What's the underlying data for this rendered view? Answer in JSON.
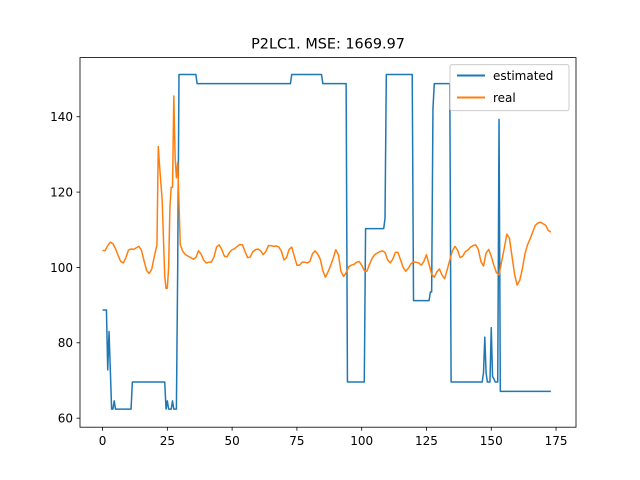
{
  "chart_data": {
    "type": "line",
    "title": "P2LC1. MSE: 1669.97",
    "xlabel": "",
    "ylabel": "",
    "xlim": [
      -8.7,
      182.7
    ],
    "ylim": [
      57.6,
      155.7
    ],
    "xticks": [
      0,
      25,
      50,
      75,
      100,
      125,
      150,
      175
    ],
    "yticks": [
      60,
      80,
      100,
      120,
      140
    ],
    "grid": false,
    "legend_position": "top-right",
    "series": [
      {
        "name": "estimated",
        "color": "#1f77b4",
        "points": [
          [
            0,
            88.7
          ],
          [
            1.5,
            88.7
          ],
          [
            2,
            72.8
          ],
          [
            2.5,
            83.0
          ],
          [
            3,
            72.8
          ],
          [
            3.5,
            62.4
          ],
          [
            4,
            62.4
          ],
          [
            4.5,
            64.6
          ],
          [
            5,
            62.4
          ],
          [
            6,
            62.4
          ],
          [
            11,
            62.4
          ],
          [
            11.5,
            69.6
          ],
          [
            24,
            69.6
          ],
          [
            24.5,
            62.4
          ],
          [
            25,
            64.6
          ],
          [
            25.5,
            62.4
          ],
          [
            26.5,
            62.4
          ],
          [
            27,
            64.6
          ],
          [
            27.5,
            62.4
          ],
          [
            28.5,
            62.4
          ],
          [
            29,
            100.0
          ],
          [
            29.5,
            151.2
          ],
          [
            36,
            151.2
          ],
          [
            36.5,
            148.8
          ],
          [
            72.5,
            148.8
          ],
          [
            73,
            151.2
          ],
          [
            84.5,
            151.2
          ],
          [
            85,
            148.8
          ],
          [
            94,
            148.8
          ],
          [
            94.5,
            69.6
          ],
          [
            101,
            69.6
          ],
          [
            101.5,
            110.3
          ],
          [
            108.5,
            110.3
          ],
          [
            109,
            113.0
          ],
          [
            109.5,
            151.2
          ],
          [
            119.5,
            151.2
          ],
          [
            120,
            91.2
          ],
          [
            126,
            91.2
          ],
          [
            126.5,
            93.5
          ],
          [
            127,
            93.5
          ],
          [
            127.5,
            142.0
          ],
          [
            128,
            148.8
          ],
          [
            134,
            148.8
          ],
          [
            134.5,
            69.6
          ],
          [
            146.5,
            69.6
          ],
          [
            147,
            72.0
          ],
          [
            147.5,
            81.5
          ],
          [
            148,
            72.0
          ],
          [
            148.5,
            69.6
          ],
          [
            149.5,
            69.6
          ],
          [
            150,
            84.0
          ],
          [
            150.5,
            71.0
          ],
          [
            151,
            70.5
          ],
          [
            151.5,
            69.6
          ],
          [
            152.5,
            69.6
          ],
          [
            153,
            139.3
          ],
          [
            153.5,
            67.1
          ],
          [
            173,
            67.1
          ]
        ]
      },
      {
        "name": "real",
        "color": "#ff7f0e",
        "points": [
          [
            0,
            104.5
          ],
          [
            1,
            104.5
          ],
          [
            2,
            105.8
          ],
          [
            3,
            106.7
          ],
          [
            4,
            106.3
          ],
          [
            5,
            105.0
          ],
          [
            6,
            103.2
          ],
          [
            7,
            101.6
          ],
          [
            8,
            101.2
          ],
          [
            9,
            102.6
          ],
          [
            10,
            104.6
          ],
          [
            11,
            104.9
          ],
          [
            12,
            104.8
          ],
          [
            13,
            105.2
          ],
          [
            14,
            105.6
          ],
          [
            15,
            104.6
          ],
          [
            16,
            101.8
          ],
          [
            17,
            99.2
          ],
          [
            18,
            98.4
          ],
          [
            19,
            99.6
          ],
          [
            20,
            103.0
          ],
          [
            21,
            106.0
          ],
          [
            21.5,
            132.1
          ],
          [
            22,
            127.0
          ],
          [
            23,
            118.0
          ],
          [
            24,
            97.6
          ],
          [
            24.5,
            94.4
          ],
          [
            25,
            94.5
          ],
          [
            25.5,
            100.0
          ],
          [
            26,
            116.0
          ],
          [
            26.5,
            121.3
          ],
          [
            27,
            121.3
          ],
          [
            27.5,
            145.5
          ],
          [
            28,
            129.4
          ],
          [
            28.5,
            123.8
          ],
          [
            29,
            127.9
          ],
          [
            29.5,
            117.0
          ],
          [
            30,
            106.0
          ],
          [
            31,
            104.2
          ],
          [
            32,
            103.4
          ],
          [
            33,
            103.0
          ],
          [
            34,
            102.6
          ],
          [
            35,
            102.2
          ],
          [
            36,
            102.6
          ],
          [
            37,
            104.4
          ],
          [
            38,
            103.6
          ],
          [
            39,
            102.0
          ],
          [
            40,
            101.2
          ],
          [
            41,
            101.4
          ],
          [
            42,
            101.4
          ],
          [
            43,
            102.8
          ],
          [
            44,
            105.4
          ],
          [
            45,
            106.0
          ],
          [
            46,
            104.8
          ],
          [
            47,
            103.0
          ],
          [
            48,
            102.8
          ],
          [
            49,
            104.0
          ],
          [
            50,
            104.7
          ],
          [
            51,
            105.0
          ],
          [
            52,
            105.6
          ],
          [
            53,
            106.1
          ],
          [
            54,
            106.0
          ],
          [
            55,
            104.2
          ],
          [
            56,
            102.6
          ],
          [
            57,
            102.8
          ],
          [
            58,
            104.2
          ],
          [
            59,
            104.7
          ],
          [
            60,
            104.9
          ],
          [
            61,
            104.4
          ],
          [
            62,
            103.4
          ],
          [
            63,
            104.2
          ],
          [
            64,
            105.8
          ],
          [
            65,
            105.8
          ],
          [
            66,
            105.6
          ],
          [
            67,
            105.7
          ],
          [
            68,
            105.4
          ],
          [
            69,
            104.4
          ],
          [
            70,
            102.0
          ],
          [
            71,
            102.6
          ],
          [
            72,
            104.8
          ],
          [
            73,
            105.4
          ],
          [
            74,
            103.0
          ],
          [
            75,
            100.6
          ],
          [
            76,
            100.6
          ],
          [
            77,
            101.4
          ],
          [
            78,
            101.4
          ],
          [
            79,
            101.2
          ],
          [
            80,
            101.6
          ],
          [
            81,
            103.6
          ],
          [
            82,
            104.4
          ],
          [
            83,
            103.6
          ],
          [
            84,
            102.2
          ],
          [
            85,
            99.2
          ],
          [
            86,
            97.4
          ],
          [
            87,
            98.8
          ],
          [
            88,
            100.5
          ],
          [
            89,
            102.4
          ],
          [
            90,
            104.7
          ],
          [
            91,
            103.4
          ],
          [
            92,
            99.0
          ],
          [
            93,
            97.6
          ],
          [
            94,
            98.6
          ],
          [
            95,
            100.2
          ],
          [
            96,
            100.6
          ],
          [
            97,
            100.8
          ],
          [
            98,
            101.4
          ],
          [
            99,
            101.6
          ],
          [
            100,
            100.6
          ],
          [
            101,
            99.2
          ],
          [
            102,
            99.0
          ],
          [
            103,
            100.8
          ],
          [
            104,
            102.4
          ],
          [
            105,
            103.4
          ],
          [
            106,
            103.8
          ],
          [
            107,
            104.2
          ],
          [
            108,
            104.4
          ],
          [
            109,
            104.0
          ],
          [
            110,
            102.0
          ],
          [
            111,
            101.2
          ],
          [
            112,
            102.2
          ],
          [
            113,
            104.0
          ],
          [
            114,
            104.0
          ],
          [
            115,
            102.0
          ],
          [
            116,
            100.0
          ],
          [
            117,
            99.0
          ],
          [
            118,
            99.8
          ],
          [
            119,
            101.0
          ],
          [
            120,
            101.4
          ],
          [
            121,
            101.4
          ],
          [
            122,
            101.2
          ],
          [
            123,
            100.6
          ],
          [
            124,
            101.6
          ],
          [
            125,
            103.4
          ],
          [
            126,
            100.8
          ],
          [
            127,
            98.2
          ],
          [
            128,
            97.4
          ],
          [
            129,
            98.8
          ],
          [
            130,
            99.6
          ],
          [
            131,
            98.0
          ],
          [
            132,
            97.0
          ],
          [
            133,
            99.4
          ],
          [
            134,
            102.0
          ],
          [
            135,
            104.4
          ],
          [
            136,
            105.6
          ],
          [
            137,
            104.6
          ],
          [
            138,
            102.6
          ],
          [
            139,
            103.0
          ],
          [
            140,
            104.2
          ],
          [
            141,
            104.6
          ],
          [
            142,
            105.4
          ],
          [
            143,
            105.8
          ],
          [
            144,
            106.0
          ],
          [
            145,
            104.8
          ],
          [
            146,
            101.6
          ],
          [
            147,
            100.4
          ],
          [
            148,
            103.8
          ],
          [
            149,
            104.8
          ],
          [
            150,
            103.0
          ],
          [
            151,
            100.6
          ],
          [
            152,
            98.6
          ],
          [
            153,
            98.0
          ],
          [
            154,
            101.6
          ],
          [
            155,
            105.0
          ],
          [
            156,
            108.8
          ],
          [
            157,
            107.8
          ],
          [
            158,
            103.0
          ],
          [
            159,
            98.2
          ],
          [
            160,
            95.3
          ],
          [
            161,
            96.6
          ],
          [
            162,
            99.6
          ],
          [
            163,
            103.6
          ],
          [
            164,
            106.0
          ],
          [
            165,
            107.6
          ],
          [
            166,
            109.4
          ],
          [
            167,
            111.2
          ],
          [
            168,
            111.8
          ],
          [
            169,
            112.0
          ],
          [
            170,
            111.6
          ],
          [
            171,
            111.2
          ],
          [
            172,
            109.8
          ],
          [
            173,
            109.4
          ]
        ]
      }
    ]
  }
}
